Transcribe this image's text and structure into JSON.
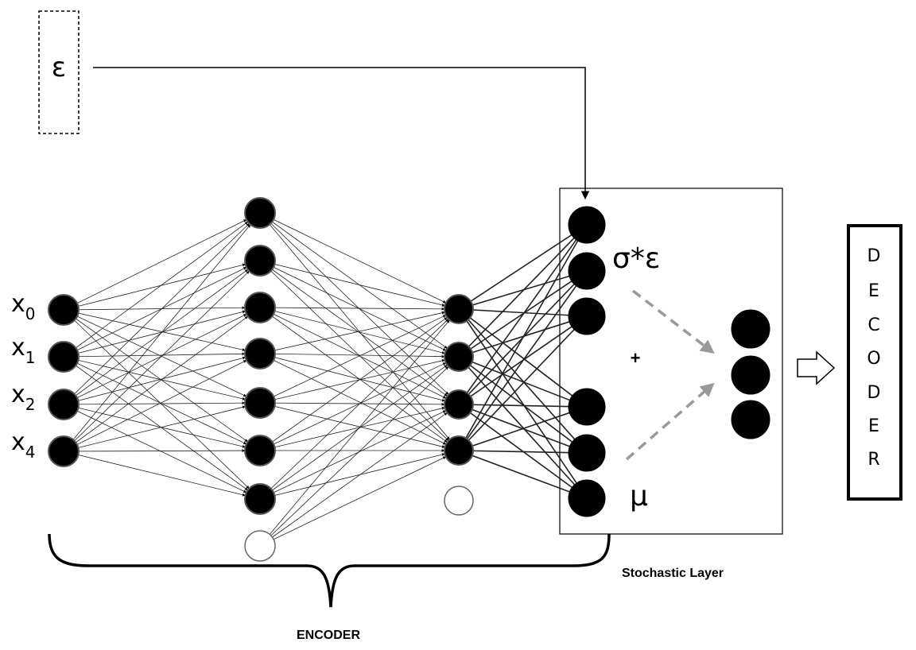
{
  "noise": {
    "symbol": "ε"
  },
  "inputs": {
    "labels": [
      {
        "main": "x",
        "sub": "0"
      },
      {
        "main": "x",
        "sub": "1"
      },
      {
        "main": "x",
        "sub": "2"
      },
      {
        "main": "x",
        "sub": "4"
      }
    ]
  },
  "stochastic": {
    "sigma_label": "σ*ε",
    "plus_label": "+",
    "mu_label": "μ",
    "caption": "Stochastic Layer"
  },
  "decoder": {
    "letters": [
      "D",
      "E",
      "C",
      "O",
      "D",
      "E",
      "R"
    ]
  },
  "encoder": {
    "caption": "ENCODER"
  },
  "colors": {
    "node": "#000000",
    "node_stroke": "#555555",
    "edge": "#222222",
    "dashed_arrow": "#999999"
  }
}
